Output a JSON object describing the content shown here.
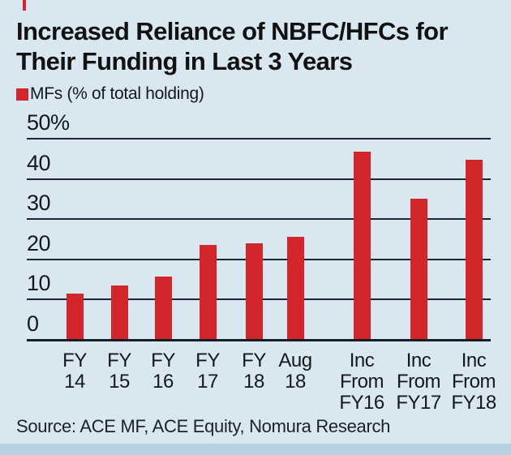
{
  "chart_data": {
    "type": "bar",
    "title": "Increased Reliance of NBFC/HFCs for\nTheir Funding in Last 3 Years",
    "legend": "MFs (% of total holding)",
    "categories": [
      "FY\n14",
      "FY\n15",
      "FY\n16",
      "FY\n17",
      "FY\n18",
      "Aug\n18",
      "Inc\nFrom\nFY16",
      "Inc\nFrom\nFY17",
      "Inc\nFrom\nFY18"
    ],
    "values": [
      11.3,
      13.4,
      15.6,
      23.4,
      23.8,
      25.4,
      46.5,
      34.9,
      44.5
    ],
    "ylabel": "% of total holding",
    "ylim": [
      0,
      50
    ],
    "yticks": [
      {
        "value": 0,
        "label": "0"
      },
      {
        "value": 10,
        "label": "10"
      },
      {
        "value": 20,
        "label": "20"
      },
      {
        "value": 30,
        "label": "30"
      },
      {
        "value": 40,
        "label": "40"
      },
      {
        "value": 50,
        "label": "50%"
      }
    ],
    "grid": "horizontal",
    "legend_position": "top-left",
    "bar_color": "#d2262b",
    "source": "Source: ACE MF, ACE Equity, Nomura Research"
  }
}
